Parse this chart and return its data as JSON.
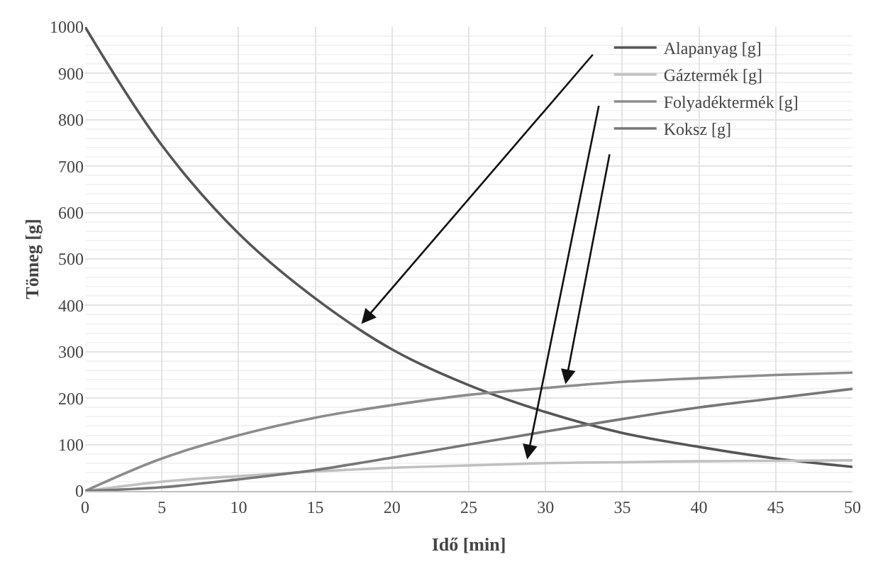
{
  "chart_data": {
    "type": "line",
    "xlabel": "Idő [min]",
    "ylabel": "Tömeg [g]",
    "x": [
      0,
      5,
      10,
      15,
      20,
      25,
      30,
      35,
      40,
      45,
      50
    ],
    "series": [
      {
        "name": "Alapanyag [g]",
        "color": "#555555",
        "values": [
          1000,
          745,
          555,
          415,
          305,
          228,
          170,
          125,
          95,
          70,
          52
        ]
      },
      {
        "name": "Gáztermék [g]",
        "color": "#c0c0c0",
        "values": [
          0,
          20,
          32,
          42,
          50,
          55,
          60,
          62,
          64,
          65,
          66
        ]
      },
      {
        "name": "Folyadéktermék [g]",
        "color": "#8c8c8c",
        "values": [
          0,
          70,
          120,
          158,
          185,
          207,
          222,
          235,
          243,
          250,
          255
        ]
      },
      {
        "name": "Koksz [g]",
        "color": "#777777",
        "values": [
          0,
          8,
          25,
          45,
          72,
          100,
          128,
          155,
          180,
          200,
          220
        ]
      }
    ],
    "xlim": [
      0,
      50
    ],
    "xticks": [
      0,
      5,
      10,
      15,
      20,
      25,
      30,
      35,
      40,
      45,
      50
    ],
    "ylim": [
      0,
      1000
    ],
    "yticks": [
      0,
      100,
      200,
      300,
      400,
      500,
      600,
      700,
      800,
      900,
      1000
    ],
    "grid": true,
    "legend": "top right",
    "marker": "none",
    "line_style": "solid"
  }
}
